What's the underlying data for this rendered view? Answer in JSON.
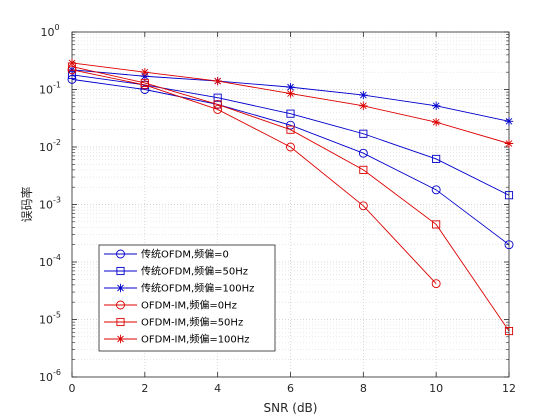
{
  "chart_data": {
    "type": "line",
    "xlabel": "SNR (dB)",
    "ylabel": "误码率",
    "x": [
      0,
      2,
      4,
      6,
      8,
      10,
      12
    ],
    "xlim": [
      0,
      12
    ],
    "xticks": [
      "0",
      "2",
      "4",
      "6",
      "8",
      "10",
      "12"
    ],
    "ylim": [
      1e-06,
      1
    ],
    "yscale": "log",
    "yticks": [
      {
        "base": "10",
        "exp": "0"
      },
      {
        "base": "10",
        "exp": "-1"
      },
      {
        "base": "10",
        "exp": "-2"
      },
      {
        "base": "10",
        "exp": "-3"
      },
      {
        "base": "10",
        "exp": "-4"
      },
      {
        "base": "10",
        "exp": "-5"
      },
      {
        "base": "10",
        "exp": "-6"
      }
    ],
    "grid": true,
    "legend_position": "bottom-left",
    "series": [
      {
        "name": "传统OFDM,频偏=0",
        "color": "#0000cc",
        "marker": "circle",
        "x": [
          0,
          2,
          4,
          6,
          8,
          10,
          12
        ],
        "y": [
          0.15,
          0.1,
          0.055,
          0.024,
          0.0078,
          0.0018,
          0.0002
        ]
      },
      {
        "name": "传统OFDM,频偏=50Hz",
        "color": "#0000cc",
        "marker": "square",
        "x": [
          0,
          2,
          4,
          6,
          8,
          10,
          12
        ],
        "y": [
          0.18,
          0.12,
          0.072,
          0.038,
          0.017,
          0.0062,
          0.00145
        ]
      },
      {
        "name": "传统OFDM,频偏=100Hz",
        "color": "#0000cc",
        "marker": "star",
        "x": [
          0,
          2,
          4,
          6,
          8,
          10,
          12
        ],
        "y": [
          0.22,
          0.17,
          0.14,
          0.11,
          0.08,
          0.052,
          0.028
        ]
      },
      {
        "name": "OFDM-IM,频偏=0Hz",
        "color": "#dd0000",
        "marker": "circle",
        "x": [
          0,
          2,
          4,
          6,
          8,
          10
        ],
        "y": [
          0.22,
          0.12,
          0.045,
          0.01,
          0.00095,
          4.2e-05
        ]
      },
      {
        "name": "OFDM-IM,频偏=50Hz",
        "color": "#dd0000",
        "marker": "square",
        "x": [
          0,
          2,
          4,
          6,
          8,
          10,
          12
        ],
        "y": [
          0.25,
          0.13,
          0.055,
          0.02,
          0.004,
          0.00045,
          6.3e-06
        ]
      },
      {
        "name": "OFDM-IM,频偏=100Hz",
        "color": "#dd0000",
        "marker": "star",
        "x": [
          0,
          2,
          4,
          6,
          8,
          10,
          12
        ],
        "y": [
          0.29,
          0.2,
          0.14,
          0.085,
          0.052,
          0.027,
          0.0115
        ]
      }
    ]
  }
}
